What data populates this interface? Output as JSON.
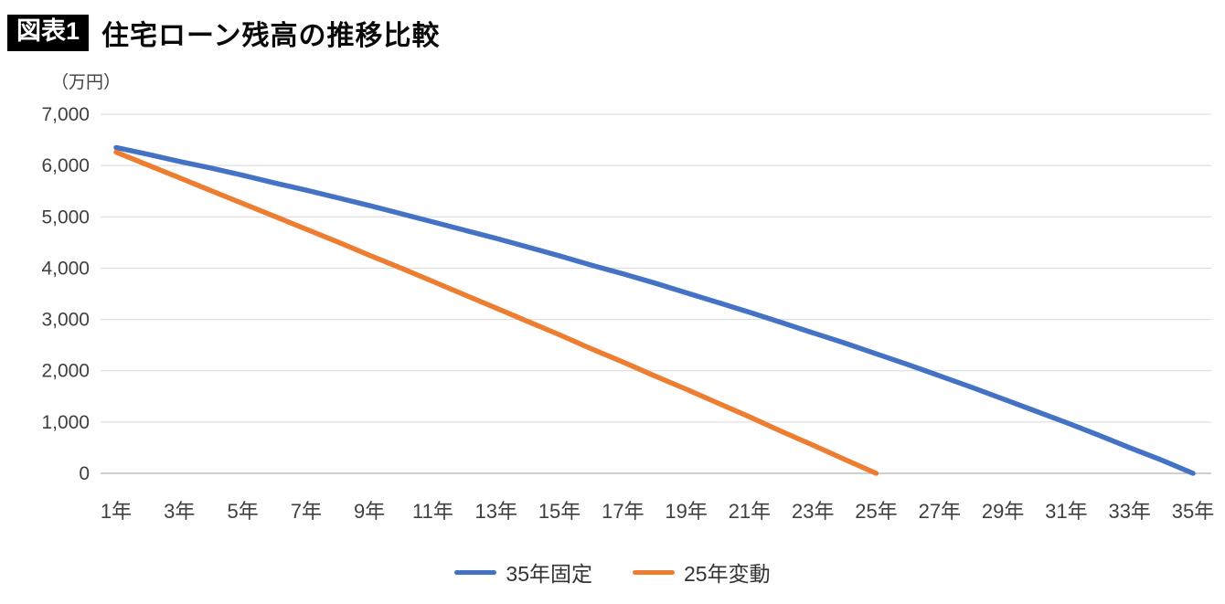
{
  "header": {
    "badge": "図表1",
    "title": "住宅ローン残高の推移比較"
  },
  "colors": {
    "grid": "#D9D9D9",
    "axis": "#BFBFBF",
    "text": "#3F3F3F",
    "series_blue": "#4472C4",
    "series_orange": "#ED7D31"
  },
  "chart_data": {
    "type": "line",
    "title": "住宅ローン残高の推移比較",
    "unit_label": "（万円）",
    "xlabel": "",
    "ylabel": "",
    "ylim": [
      0,
      7000
    ],
    "grid": true,
    "legend_position": "bottom",
    "years": [
      1,
      2,
      3,
      4,
      5,
      6,
      7,
      8,
      9,
      10,
      11,
      12,
      13,
      14,
      15,
      16,
      17,
      18,
      19,
      20,
      21,
      22,
      23,
      24,
      25,
      26,
      27,
      28,
      29,
      30,
      31,
      32,
      33,
      34,
      35
    ],
    "y_ticks": [
      {
        "value": 7000,
        "label": "7,000"
      },
      {
        "value": 6000,
        "label": "6,000"
      },
      {
        "value": 5000,
        "label": "5,000"
      },
      {
        "value": 4000,
        "label": "4,000"
      },
      {
        "value": 3000,
        "label": "3,000"
      },
      {
        "value": 2000,
        "label": "2,000"
      },
      {
        "value": 1000,
        "label": "1,000"
      },
      {
        "value": 0,
        "label": "0"
      }
    ],
    "x_ticks": [
      {
        "year": 1,
        "label": "1年"
      },
      {
        "year": 3,
        "label": "3年"
      },
      {
        "year": 5,
        "label": "5年"
      },
      {
        "year": 7,
        "label": "7年"
      },
      {
        "year": 9,
        "label": "9年"
      },
      {
        "year": 11,
        "label": "11年"
      },
      {
        "year": 13,
        "label": "13年"
      },
      {
        "year": 15,
        "label": "15年"
      },
      {
        "year": 17,
        "label": "17年"
      },
      {
        "year": 19,
        "label": "19年"
      },
      {
        "year": 21,
        "label": "21年"
      },
      {
        "year": 23,
        "label": "23年"
      },
      {
        "year": 25,
        "label": "25年"
      },
      {
        "year": 27,
        "label": "27年"
      },
      {
        "year": 29,
        "label": "29年"
      },
      {
        "year": 31,
        "label": "31年"
      },
      {
        "year": 33,
        "label": "33年"
      },
      {
        "year": 35,
        "label": "35年"
      }
    ],
    "series": [
      {
        "id": "fixed-35",
        "name": "35年固定",
        "color": "#4472C4",
        "values": [
          6350,
          6220,
          6080,
          5950,
          5810,
          5660,
          5520,
          5370,
          5220,
          5060,
          4900,
          4740,
          4580,
          4410,
          4240,
          4060,
          3890,
          3710,
          3520,
          3330,
          3140,
          2940,
          2740,
          2540,
          2330,
          2120,
          1900,
          1680,
          1450,
          1220,
          990,
          750,
          500,
          260,
          0
        ]
      },
      {
        "id": "variable-25",
        "name": "25年変動",
        "color": "#ED7D31",
        "values": [
          6260,
          6010,
          5760,
          5510,
          5260,
          5010,
          4760,
          4510,
          4250,
          4000,
          3740,
          3480,
          3220,
          2960,
          2700,
          2430,
          2170,
          1900,
          1640,
          1370,
          1100,
          820,
          550,
          270,
          0,
          null,
          null,
          null,
          null,
          null,
          null,
          null,
          null,
          null,
          null
        ]
      }
    ]
  }
}
